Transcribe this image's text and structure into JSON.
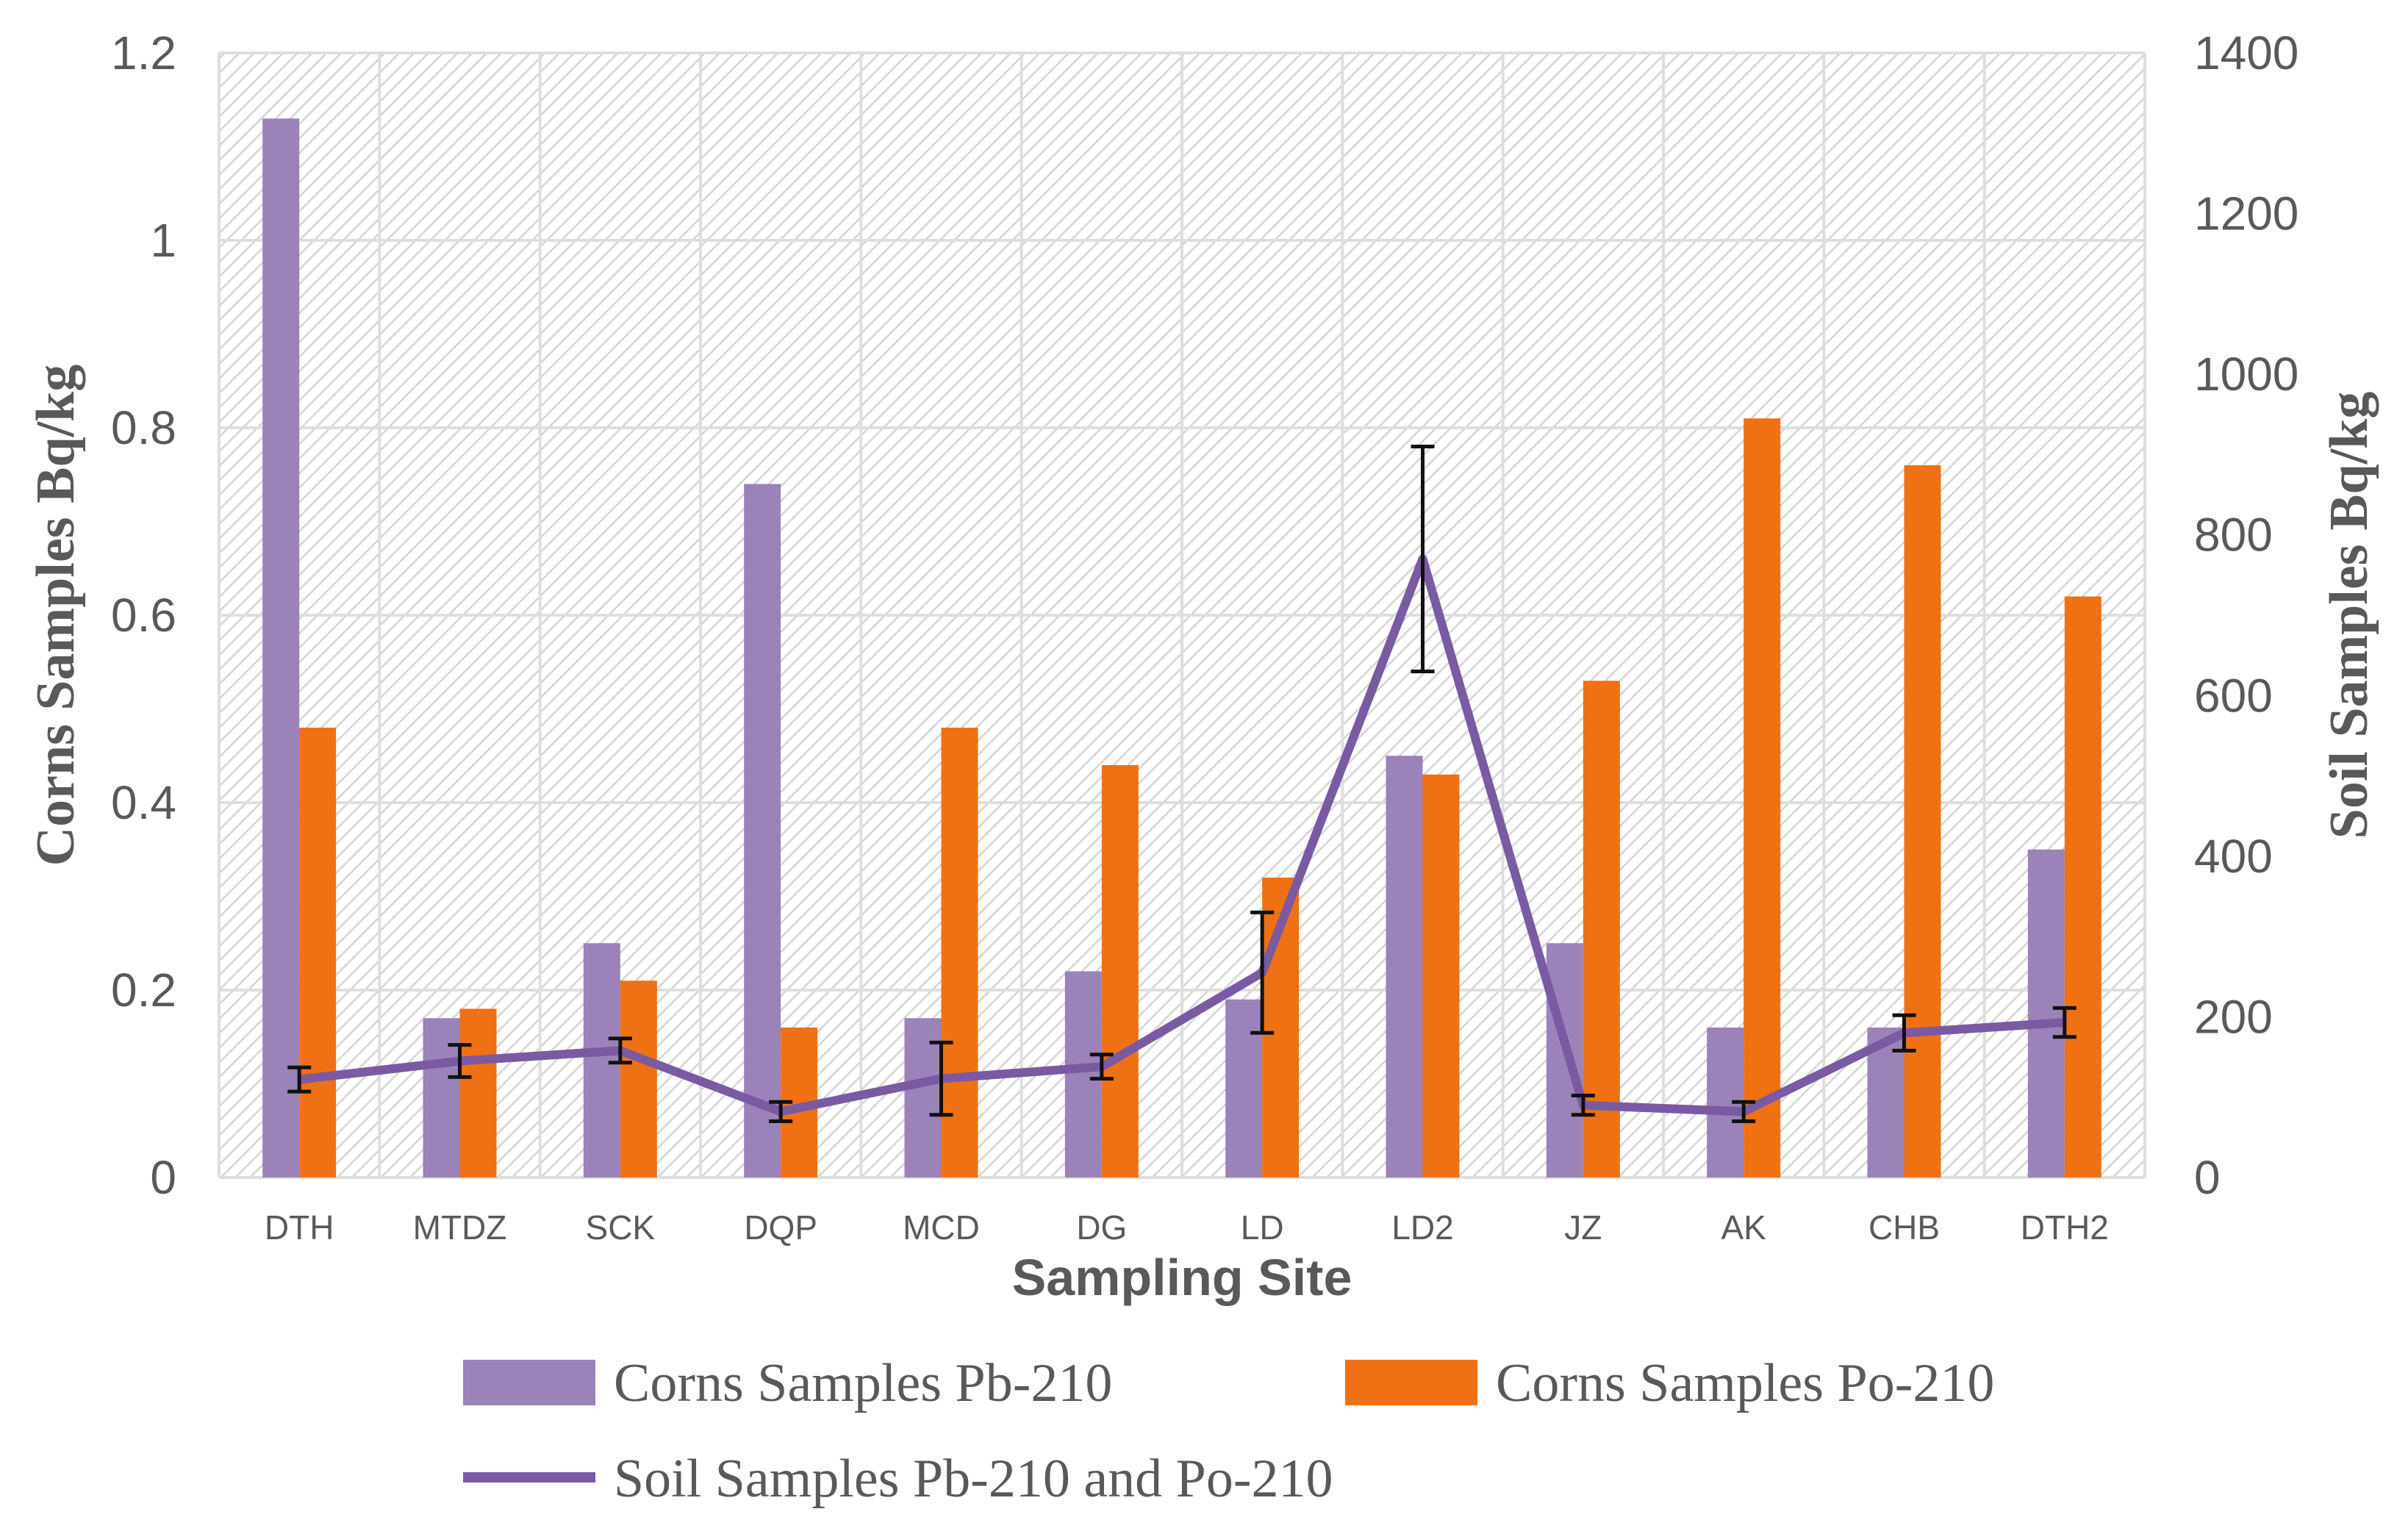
{
  "chart_data": {
    "type": "bar",
    "categories": [
      "DTH",
      "MTDZ",
      "SCK",
      "DQP",
      "MCD",
      "DG",
      "LD",
      "LD2",
      "JZ",
      "AK",
      "CHB",
      "DTH2"
    ],
    "series": [
      {
        "name": "Corns Samples Pb-210",
        "axis": "left",
        "color": "#9b82b8",
        "values": [
          1.13,
          0.17,
          0.25,
          0.74,
          0.17,
          0.22,
          0.19,
          0.45,
          0.25,
          0.16,
          0.16,
          0.35
        ]
      },
      {
        "name": "Corns Samples Po-210",
        "axis": "left",
        "color": "#f07014",
        "values": [
          0.48,
          0.18,
          0.21,
          0.16,
          0.48,
          0.44,
          0.32,
          0.43,
          0.53,
          0.81,
          0.76,
          0.62
        ]
      },
      {
        "name": "Soil Samples Pb-210 and Po-210",
        "axis": "right",
        "type": "line",
        "color": "#7a5aa3",
        "values": [
          122,
          145,
          158,
          82,
          123,
          138,
          255,
          770,
          90,
          82,
          180,
          193
        ],
        "errors": [
          15,
          20,
          15,
          12,
          45,
          15,
          75,
          140,
          12,
          12,
          22,
          18
        ]
      }
    ],
    "xlabel": "Sampling Site",
    "ylabel": "Corns Samples Bq/kg",
    "y2label": "Soil Samples Bq/kg",
    "ylim": [
      0,
      1.2
    ],
    "y2lim": [
      0,
      1400
    ],
    "yticks": [
      "0",
      "0.2",
      "0.4",
      "0.6",
      "0.8",
      "1",
      "1.2"
    ],
    "y2ticks": [
      "0",
      "200",
      "400",
      "600",
      "800",
      "1000",
      "1200",
      "1400"
    ],
    "grid": true,
    "legend_position": "bottom"
  }
}
